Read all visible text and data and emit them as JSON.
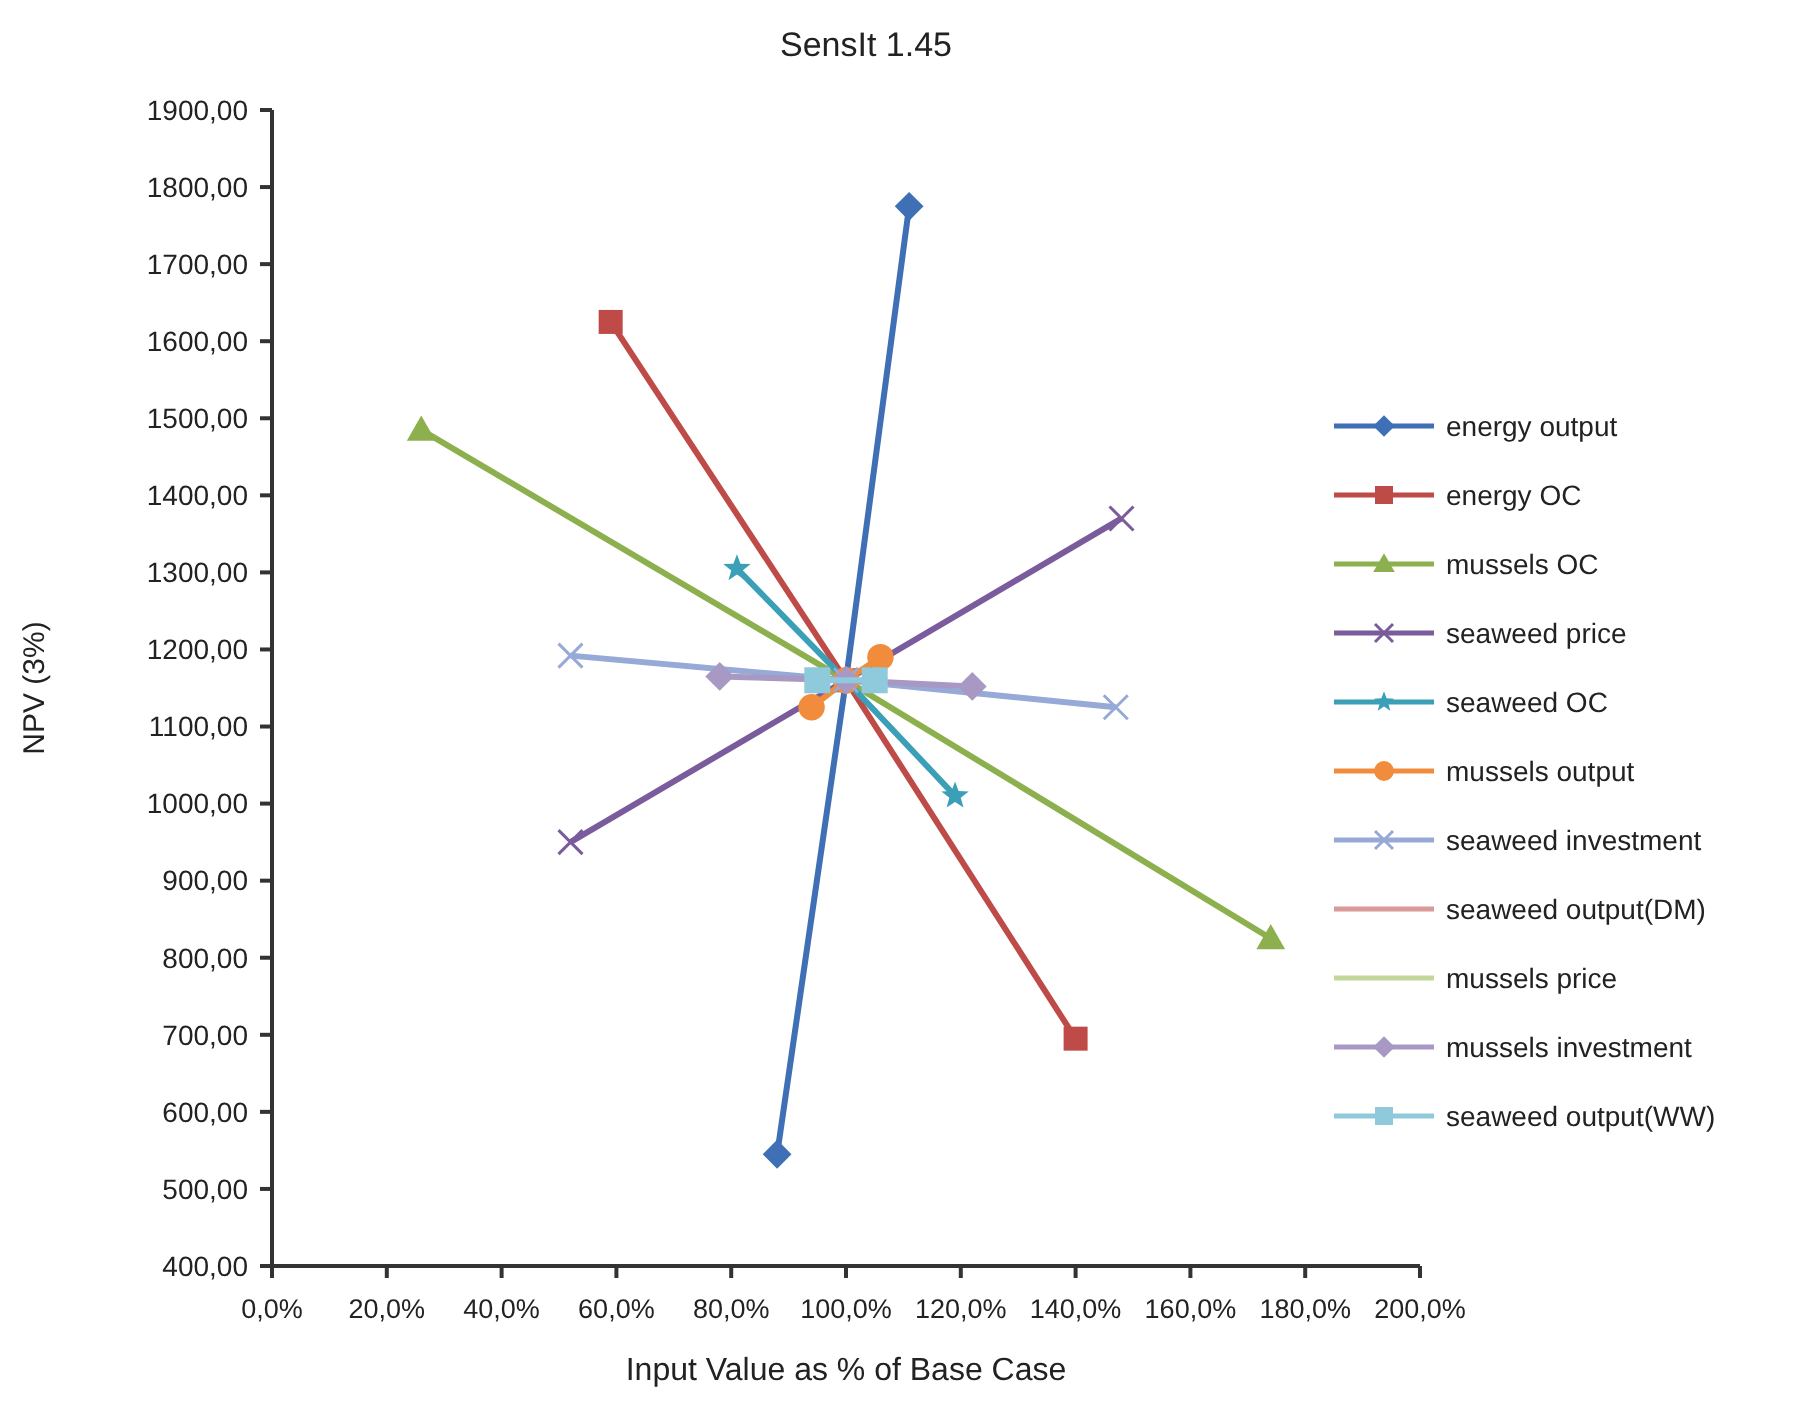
{
  "chart_data": {
    "type": "line",
    "title": "SensIt 1.45",
    "xlabel": "Input Value as % of Base Case",
    "ylabel": "NPV (3%)",
    "xlim": [
      0,
      200
    ],
    "ylim": [
      400,
      1900
    ],
    "grid": false,
    "legend": "right",
    "xticks": [
      {
        "value": 0,
        "label": "0,0%"
      },
      {
        "value": 20,
        "label": "20,0%"
      },
      {
        "value": 40,
        "label": "40,0%"
      },
      {
        "value": 60,
        "label": "60,0%"
      },
      {
        "value": 80,
        "label": "80,0%"
      },
      {
        "value": 100,
        "label": "100,0%"
      },
      {
        "value": 120,
        "label": "120,0%"
      },
      {
        "value": 140,
        "label": "140,0%"
      },
      {
        "value": 160,
        "label": "160,0%"
      },
      {
        "value": 180,
        "label": "180,0%"
      },
      {
        "value": 200,
        "label": "200,0%"
      }
    ],
    "yticks": [
      {
        "value": 400,
        "label": "400,00"
      },
      {
        "value": 500,
        "label": "500,00"
      },
      {
        "value": 600,
        "label": "600,00"
      },
      {
        "value": 700,
        "label": "700,00"
      },
      {
        "value": 800,
        "label": "800,00"
      },
      {
        "value": 900,
        "label": "900,00"
      },
      {
        "value": 1000,
        "label": "1000,00"
      },
      {
        "value": 1100,
        "label": "1100,00"
      },
      {
        "value": 1200,
        "label": "1200,00"
      },
      {
        "value": 1300,
        "label": "1300,00"
      },
      {
        "value": 1400,
        "label": "1400,00"
      },
      {
        "value": 1500,
        "label": "1500,00"
      },
      {
        "value": 1600,
        "label": "1600,00"
      },
      {
        "value": 1700,
        "label": "1700,00"
      },
      {
        "value": 1800,
        "label": "1800,00"
      },
      {
        "value": 1900,
        "label": "1900,00"
      }
    ],
    "series": [
      {
        "name": "energy output",
        "color": "#3f6fb5",
        "marker": "diamond",
        "x": [
          88,
          100,
          111
        ],
        "values": [
          545,
          1160,
          1775
        ]
      },
      {
        "name": "energy OC",
        "color": "#be4b48",
        "marker": "square",
        "x": [
          59,
          100,
          140
        ],
        "values": [
          1625,
          1160,
          695
        ]
      },
      {
        "name": "mussels OC",
        "color": "#8db04f",
        "marker": "triangle",
        "x": [
          26,
          100,
          174
        ],
        "values": [
          1485,
          1160,
          825
        ]
      },
      {
        "name": "seaweed price",
        "color": "#7a5c9c",
        "marker": "cross",
        "x": [
          52,
          100,
          148
        ],
        "values": [
          950,
          1160,
          1370
        ]
      },
      {
        "name": "seaweed OC",
        "color": "#3c9fb8",
        "marker": "star",
        "x": [
          81,
          100,
          119
        ],
        "values": [
          1305,
          1160,
          1010
        ]
      },
      {
        "name": "mussels output",
        "color": "#f08c3c",
        "marker": "circle",
        "x": [
          94,
          100,
          106
        ],
        "values": [
          1125,
          1160,
          1190
        ]
      },
      {
        "name": "seaweed investment",
        "color": "#97a9d6",
        "marker": "cross",
        "x": [
          52,
          100,
          147
        ],
        "values": [
          1192,
          1160,
          1125
        ]
      },
      {
        "name": "seaweed output(DM)",
        "color": "#d99a98",
        "marker": "none",
        "values": [
          null
        ]
      },
      {
        "name": "mussels price",
        "color": "#c4d79b",
        "marker": "none",
        "values": [
          null
        ]
      },
      {
        "name": "mussels investment",
        "color": "#a898c4",
        "marker": "diamond",
        "x": [
          78,
          100,
          122
        ],
        "values": [
          1165,
          1160,
          1152
        ]
      },
      {
        "name": "seaweed output(WW)",
        "color": "#8fc9dc",
        "marker": "square",
        "x": [
          95,
          105
        ],
        "values": [
          1160,
          1160
        ]
      }
    ]
  }
}
